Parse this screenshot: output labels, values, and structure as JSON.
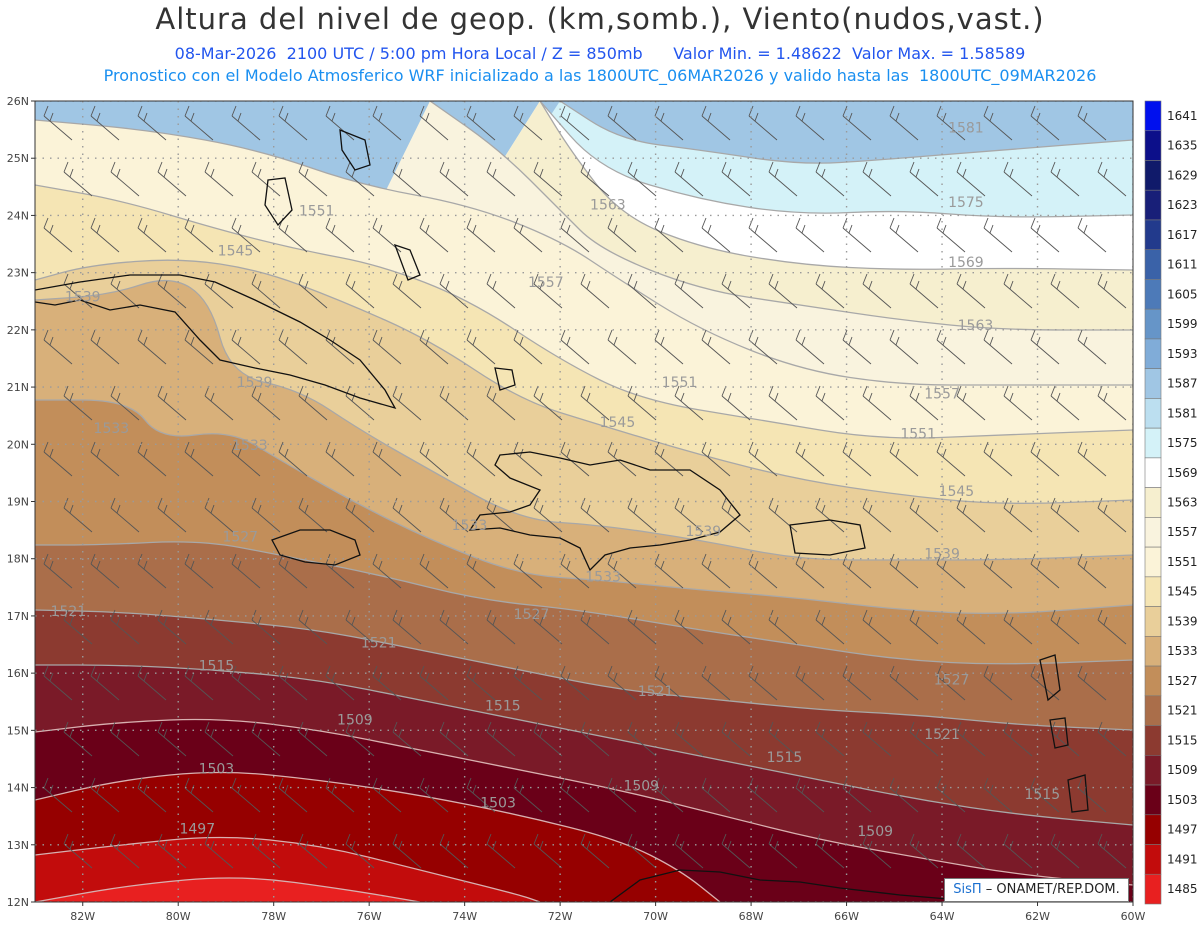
{
  "header": {
    "title": "Altura del nivel de geop. (km,somb.), Viento(nudos,vast.)",
    "subtitle": "08-Mar-2026  2100 UTC / 5:00 pm Hora Local / Z = 850mb      Valor Min. = 1.48622  Valor Max. = 1.58589",
    "info": "Pronostico con el Modelo Atmosferico WRF inicializado a las 1800UTC_06MAR2026 y valido hasta las  1800UTC_09MAR2026"
  },
  "map": {
    "lon_range": [
      -83,
      -60
    ],
    "lat_range": [
      12,
      26
    ],
    "lon_ticks": [
      "82W",
      "80W",
      "78W",
      "76W",
      "74W",
      "72W",
      "70W",
      "68W",
      "66W",
      "64W",
      "62W",
      "60W"
    ],
    "lat_ticks": [
      "12N",
      "13N",
      "14N",
      "15N",
      "16N",
      "17N",
      "18N",
      "19N",
      "20N",
      "21N",
      "22N",
      "23N",
      "24N",
      "25N",
      "26N"
    ],
    "contour_labels": [
      {
        "text": "1581",
        "lon": -63.5,
        "lat": 25.45
      },
      {
        "text": "1575",
        "lon": -63.5,
        "lat": 24.15
      },
      {
        "text": "1569",
        "lon": -63.5,
        "lat": 23.1
      },
      {
        "text": "1563",
        "lon": -63.3,
        "lat": 22.0
      },
      {
        "text": "1563",
        "lon": -71.0,
        "lat": 24.1
      },
      {
        "text": "1557",
        "lon": -64.0,
        "lat": 20.8
      },
      {
        "text": "1557",
        "lon": -72.3,
        "lat": 22.75
      },
      {
        "text": "1551",
        "lon": -64.5,
        "lat": 20.1
      },
      {
        "text": "1551",
        "lon": -69.5,
        "lat": 21.0
      },
      {
        "text": "1551",
        "lon": -77.1,
        "lat": 24.0
      },
      {
        "text": "1545",
        "lon": -78.8,
        "lat": 23.3
      },
      {
        "text": "1545",
        "lon": -70.8,
        "lat": 20.3
      },
      {
        "text": "1545",
        "lon": -63.7,
        "lat": 19.1
      },
      {
        "text": "1539",
        "lon": -82.0,
        "lat": 22.5
      },
      {
        "text": "1539",
        "lon": -78.4,
        "lat": 21.0
      },
      {
        "text": "1539",
        "lon": -69.0,
        "lat": 18.4
      },
      {
        "text": "1539",
        "lon": -64.0,
        "lat": 18.0
      },
      {
        "text": "1533",
        "lon": -81.4,
        "lat": 20.2
      },
      {
        "text": "1533",
        "lon": -78.5,
        "lat": 19.9
      },
      {
        "text": "1533",
        "lon": -73.9,
        "lat": 18.5
      },
      {
        "text": "1533",
        "lon": -71.1,
        "lat": 17.6
      },
      {
        "text": "1527",
        "lon": -78.7,
        "lat": 18.3
      },
      {
        "text": "1527",
        "lon": -72.6,
        "lat": 16.95
      },
      {
        "text": "1527",
        "lon": -63.8,
        "lat": 15.8
      },
      {
        "text": "1521",
        "lon": -82.3,
        "lat": 17.0
      },
      {
        "text": "1521",
        "lon": -75.8,
        "lat": 16.45
      },
      {
        "text": "1521",
        "lon": -70.0,
        "lat": 15.6
      },
      {
        "text": "1521",
        "lon": -64.0,
        "lat": 14.85
      },
      {
        "text": "1515",
        "lon": -79.2,
        "lat": 16.05
      },
      {
        "text": "1515",
        "lon": -73.2,
        "lat": 15.35
      },
      {
        "text": "1515",
        "lon": -67.3,
        "lat": 14.45
      },
      {
        "text": "1515",
        "lon": -61.9,
        "lat": 13.8
      },
      {
        "text": "1509",
        "lon": -76.3,
        "lat": 15.1
      },
      {
        "text": "1509",
        "lon": -70.3,
        "lat": 13.95
      },
      {
        "text": "1509",
        "lon": -65.4,
        "lat": 13.15
      },
      {
        "text": "1503",
        "lon": -79.2,
        "lat": 14.25
      },
      {
        "text": "1503",
        "lon": -73.3,
        "lat": 13.65
      },
      {
        "text": "1497",
        "lon": -79.6,
        "lat": 13.2
      }
    ],
    "credit_brand": "SisΠ",
    "credit_text": " – ONAMET/REP.DOM."
  },
  "colorbar": {
    "levels": [
      "1641",
      "1635",
      "1629",
      "1623",
      "1617",
      "1611",
      "1605",
      "1599",
      "1593",
      "1587",
      "1581",
      "1575",
      "1569",
      "1563",
      "1557",
      "1551",
      "1545",
      "1539",
      "1533",
      "1527",
      "1521",
      "1515",
      "1509",
      "1503",
      "1497",
      "1491",
      "1485"
    ],
    "colors": [
      "#0010ee",
      "#0c0f8a",
      "#101a6a",
      "#181f78",
      "#223a8c",
      "#3a62a8",
      "#4d7ab8",
      "#6695c8",
      "#80acd8",
      "#a0c6e4",
      "#bcdff0",
      "#d4f2f8",
      "#ffffff",
      "#f6efcf",
      "#f9f3de",
      "#fbf3d8",
      "#f5e5b4",
      "#e9cf9a",
      "#d8b07a",
      "#c28e5a",
      "#aa6e4a",
      "#8c3a30",
      "#7a1a28",
      "#6a0018",
      "#960000",
      "#c20c0c",
      "#e82020"
    ]
  }
}
